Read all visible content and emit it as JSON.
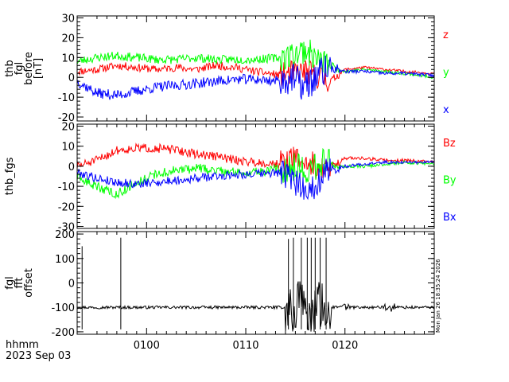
{
  "chart_data": [
    {
      "type": "line",
      "ylabel": [
        "thb",
        "fgl",
        "before",
        "[nT]"
      ],
      "ylim": [
        -22,
        31
      ],
      "yticks": [
        30,
        20,
        10,
        0,
        -10,
        -20
      ],
      "xlim_minutes": [
        -7,
        29
      ],
      "xticks": [
        "0100",
        "0110",
        "0120"
      ],
      "series": [
        {
          "name": "z",
          "color": "#ff0000",
          "seed": 11,
          "noise": 2.0,
          "x": [
            -7,
            -5,
            -3,
            -1,
            1,
            3,
            5,
            7,
            9,
            11,
            13.5,
            14.5,
            16,
            17.5,
            18.5,
            20,
            22,
            24,
            26,
            29
          ],
          "y": [
            3,
            4,
            6,
            5,
            4,
            5,
            4,
            6,
            5,
            3,
            1,
            2,
            3,
            0,
            -2,
            4,
            5,
            4,
            3,
            2
          ]
        },
        {
          "name": "y",
          "color": "#00ff00",
          "seed": 23,
          "noise": 2.2,
          "x": [
            -7,
            -5,
            -3,
            -1,
            1,
            3,
            5,
            7,
            9,
            11,
            13.5,
            14.5,
            16,
            17.5,
            18.5,
            20,
            22,
            24,
            26,
            29
          ],
          "y": [
            8,
            10,
            11,
            10,
            9,
            9,
            10,
            9,
            9,
            9,
            10,
            11,
            14,
            8,
            6,
            3,
            4,
            3,
            2,
            0
          ]
        },
        {
          "name": "x",
          "color": "#0000ff",
          "seed": 37,
          "noise": 2.6,
          "x": [
            -7,
            -5,
            -3,
            -1,
            1,
            3,
            5,
            7,
            9,
            11,
            13.5,
            14.5,
            16,
            17.5,
            18.5,
            20,
            22,
            24,
            26,
            29
          ],
          "y": [
            -2,
            -8,
            -9,
            -7,
            -5,
            -4,
            -3,
            -2,
            -1,
            -1,
            -2,
            0,
            -5,
            2,
            5,
            3,
            3,
            2,
            2,
            1
          ]
        }
      ]
    },
    {
      "type": "line",
      "ylabel": [
        "thb_fgs"
      ],
      "ylim": [
        -31,
        21
      ],
      "yticks": [
        20,
        10,
        0,
        -10,
        -20,
        -30
      ],
      "xlim_minutes": [
        -7,
        29
      ],
      "xticks": [
        "0100",
        "0110",
        "0120"
      ],
      "series": [
        {
          "name": "Bz",
          "color": "#ff0000",
          "seed": 51,
          "noise": 2.2,
          "x": [
            -7,
            -5,
            -3,
            -1,
            1,
            3,
            5,
            7,
            9,
            11,
            13.5,
            15,
            16.5,
            18,
            20,
            22,
            24,
            26,
            29
          ],
          "y": [
            0,
            3,
            8,
            9,
            9,
            8,
            6,
            5,
            3,
            2,
            1,
            4,
            1,
            -2,
            4,
            4,
            3,
            3,
            2
          ]
        },
        {
          "name": "By",
          "color": "#00ff00",
          "seed": 63,
          "noise": 2.4,
          "x": [
            -7,
            -5,
            -3,
            -1,
            1,
            3,
            5,
            7,
            9,
            11,
            13.5,
            15,
            16.5,
            18,
            20,
            22,
            24,
            26,
            29
          ],
          "y": [
            -6,
            -10,
            -14,
            -8,
            -4,
            -2,
            -1,
            -2,
            -3,
            -3,
            -1,
            0,
            -2,
            3,
            0,
            0,
            1,
            2,
            1
          ]
        },
        {
          "name": "Bx",
          "color": "#0000ff",
          "seed": 79,
          "noise": 2.2,
          "x": [
            -7,
            -5,
            -3,
            -1,
            1,
            3,
            5,
            7,
            9,
            11,
            13.5,
            15,
            16.5,
            18,
            20,
            22,
            24,
            26,
            29
          ],
          "y": [
            -3,
            -6,
            -8,
            -9,
            -8,
            -7,
            -6,
            -5,
            -4,
            -4,
            -3,
            -8,
            -12,
            -3,
            0,
            1,
            2,
            2,
            2
          ]
        }
      ]
    },
    {
      "type": "line",
      "ylabel": [
        "fgl",
        "fft",
        "offset"
      ],
      "ylim": [
        -210,
        210
      ],
      "yticks": [
        200,
        100,
        0,
        -100,
        -200
      ],
      "xlim_minutes": [
        -7,
        29
      ],
      "xticks": [
        "0100",
        "0110",
        "0120"
      ],
      "baseline": -100,
      "spikes": [
        {
          "x": -6.5,
          "y": 150
        },
        {
          "x": -2.6,
          "y": 185
        },
        {
          "x": 14.3,
          "y": 180
        },
        {
          "x": 14.8,
          "y": 185
        },
        {
          "x": 15.6,
          "y": 185
        },
        {
          "x": 16.2,
          "y": 185
        },
        {
          "x": 16.6,
          "y": 185
        },
        {
          "x": 17.0,
          "y": 185
        },
        {
          "x": 17.5,
          "y": 185
        },
        {
          "x": 18.1,
          "y": 185
        }
      ],
      "series": [
        {
          "name": "",
          "color": "#000000",
          "seed": 97
        }
      ]
    }
  ],
  "footer": {
    "time_label": "hhmm",
    "date_label": "2023 Sep 03",
    "stamp": "Mon Jan 26 18:35:24 2026"
  }
}
